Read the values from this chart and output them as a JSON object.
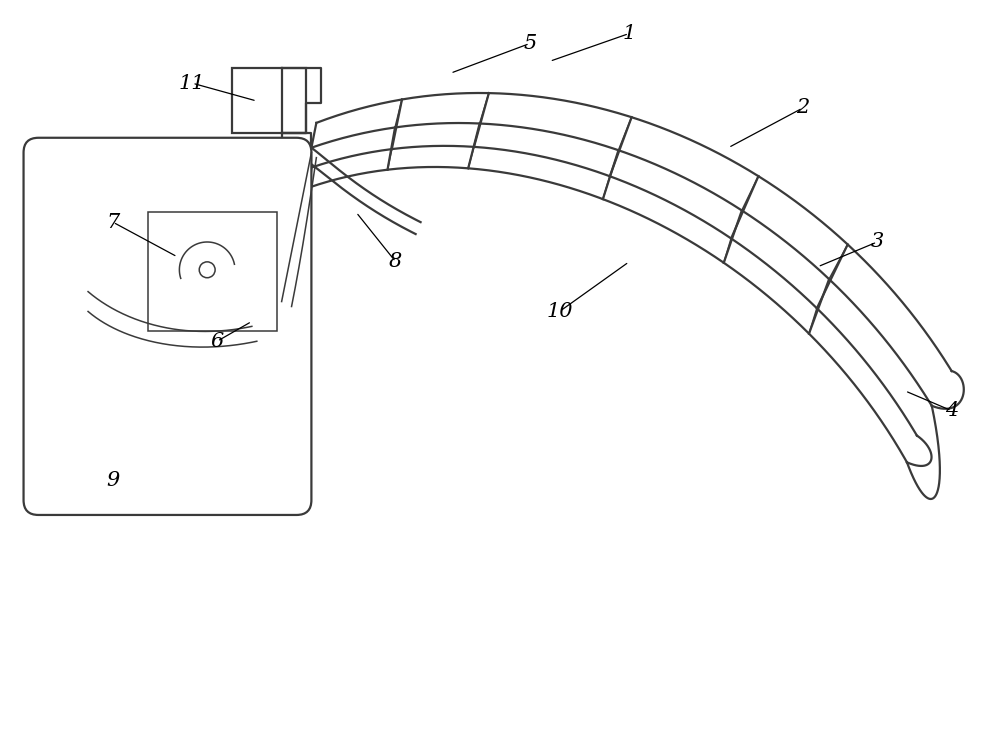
{
  "bg_color": "#ffffff",
  "line_color": "#3a3a3a",
  "lw_main": 1.6,
  "lw_thin": 1.1,
  "fig_width": 10.0,
  "fig_height": 7.51,
  "font_size": 15
}
